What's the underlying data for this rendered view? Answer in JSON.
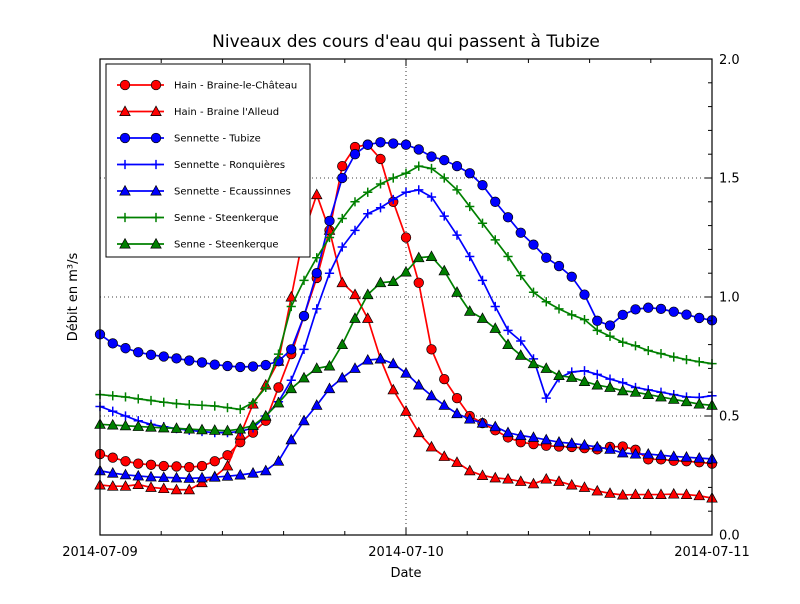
{
  "chart_data": {
    "type": "line",
    "title": "Niveaux des cours d'eau qui passent à Tubize",
    "xlabel": "Date",
    "ylabel": "Débit en m³/s",
    "x_tick_labels": [
      "2014-07-09",
      "2014-07-10",
      "2014-07-11"
    ],
    "y_tick_labels": [
      "0.0",
      "0.5",
      "1.0",
      "1.5",
      "2.0"
    ],
    "ylim": [
      0.0,
      2.0
    ],
    "x_hours_total": 48,
    "grid": "dotted",
    "legend_position": "upper-left",
    "series": [
      {
        "name": "Hain - Braine-le-Château",
        "color": "#ff0000",
        "marker": "circle",
        "values": [
          0.34,
          0.325,
          0.31,
          0.3,
          0.295,
          0.29,
          0.288,
          0.285,
          0.29,
          0.31,
          0.335,
          0.39,
          0.43,
          0.48,
          0.62,
          0.76,
          0.92,
          1.08,
          1.28,
          1.55,
          1.63,
          1.64,
          1.58,
          1.4,
          1.25,
          1.06,
          0.78,
          0.655,
          0.575,
          0.5,
          0.47,
          0.44,
          0.41,
          0.39,
          0.382,
          0.375,
          0.372,
          0.37,
          0.365,
          0.36,
          0.37,
          0.372,
          0.358,
          0.318,
          0.318,
          0.312,
          0.31,
          0.306,
          0.3
        ]
      },
      {
        "name": "Hain - Braine l'Alleud",
        "color": "#ff0000",
        "marker": "triangle",
        "values": [
          0.21,
          0.205,
          0.205,
          0.212,
          0.2,
          0.195,
          0.19,
          0.19,
          0.22,
          0.245,
          0.29,
          0.42,
          0.55,
          0.63,
          0.73,
          1.0,
          1.27,
          1.43,
          1.28,
          1.06,
          1.01,
          0.91,
          0.74,
          0.61,
          0.52,
          0.43,
          0.37,
          0.33,
          0.305,
          0.27,
          0.25,
          0.24,
          0.235,
          0.225,
          0.215,
          0.235,
          0.225,
          0.21,
          0.2,
          0.185,
          0.175,
          0.168,
          0.17,
          0.17,
          0.17,
          0.172,
          0.17,
          0.165,
          0.155
        ]
      },
      {
        "name": "Sennette - Tubize",
        "color": "#0000ff",
        "marker": "circle",
        "values": [
          0.843,
          0.805,
          0.785,
          0.768,
          0.757,
          0.75,
          0.742,
          0.733,
          0.725,
          0.716,
          0.71,
          0.706,
          0.708,
          0.714,
          0.73,
          0.78,
          0.92,
          1.1,
          1.32,
          1.5,
          1.6,
          1.64,
          1.65,
          1.645,
          1.64,
          1.62,
          1.59,
          1.575,
          1.55,
          1.52,
          1.47,
          1.4,
          1.335,
          1.27,
          1.22,
          1.165,
          1.13,
          1.085,
          1.01,
          0.9,
          0.88,
          0.925,
          0.948,
          0.955,
          0.95,
          0.938,
          0.926,
          0.912,
          0.902
        ]
      },
      {
        "name": "Sennette - Ronquières",
        "color": "#0000ff",
        "marker": "plus",
        "values": [
          0.54,
          0.52,
          0.5,
          0.48,
          0.465,
          0.455,
          0.447,
          0.44,
          0.435,
          0.43,
          0.43,
          0.435,
          0.45,
          0.5,
          0.56,
          0.65,
          0.78,
          0.95,
          1.1,
          1.21,
          1.28,
          1.35,
          1.375,
          1.41,
          1.44,
          1.45,
          1.42,
          1.34,
          1.26,
          1.17,
          1.07,
          0.96,
          0.86,
          0.815,
          0.74,
          0.575,
          0.66,
          0.685,
          0.69,
          0.675,
          0.655,
          0.64,
          0.62,
          0.61,
          0.6,
          0.59,
          0.58,
          0.578,
          0.585
        ]
      },
      {
        "name": "Sennette - Ecaussinnes",
        "color": "#0000ff",
        "marker": "triangle",
        "values": [
          0.27,
          0.26,
          0.253,
          0.248,
          0.244,
          0.242,
          0.24,
          0.238,
          0.24,
          0.243,
          0.247,
          0.252,
          0.26,
          0.27,
          0.31,
          0.4,
          0.48,
          0.545,
          0.615,
          0.66,
          0.7,
          0.735,
          0.74,
          0.72,
          0.68,
          0.63,
          0.585,
          0.545,
          0.51,
          0.487,
          0.47,
          0.455,
          0.43,
          0.418,
          0.41,
          0.4,
          0.39,
          0.385,
          0.378,
          0.37,
          0.36,
          0.345,
          0.34,
          0.34,
          0.335,
          0.33,
          0.327,
          0.323,
          0.32
        ]
      },
      {
        "name": "Senne - Steenkerque",
        "color": "#008000",
        "marker": "plus",
        "values": [
          0.59,
          0.585,
          0.58,
          0.572,
          0.565,
          0.558,
          0.552,
          0.548,
          0.545,
          0.542,
          0.535,
          0.528,
          0.556,
          0.62,
          0.76,
          0.96,
          1.07,
          1.165,
          1.25,
          1.33,
          1.4,
          1.44,
          1.475,
          1.5,
          1.52,
          1.55,
          1.54,
          1.5,
          1.45,
          1.38,
          1.31,
          1.24,
          1.17,
          1.09,
          1.02,
          0.98,
          0.95,
          0.925,
          0.905,
          0.86,
          0.835,
          0.81,
          0.795,
          0.775,
          0.762,
          0.748,
          0.737,
          0.728,
          0.72
        ]
      },
      {
        "name": "Senne - Steenkerque",
        "color": "#008000",
        "marker": "triangle",
        "values": [
          0.465,
          0.462,
          0.459,
          0.456,
          0.453,
          0.45,
          0.448,
          0.445,
          0.442,
          0.44,
          0.438,
          0.445,
          0.46,
          0.5,
          0.555,
          0.615,
          0.66,
          0.7,
          0.71,
          0.8,
          0.91,
          1.01,
          1.06,
          1.065,
          1.105,
          1.165,
          1.17,
          1.11,
          1.02,
          0.94,
          0.91,
          0.868,
          0.8,
          0.755,
          0.72,
          0.7,
          0.67,
          0.662,
          0.645,
          0.63,
          0.62,
          0.606,
          0.6,
          0.59,
          0.58,
          0.57,
          0.56,
          0.55,
          0.545
        ]
      }
    ]
  }
}
